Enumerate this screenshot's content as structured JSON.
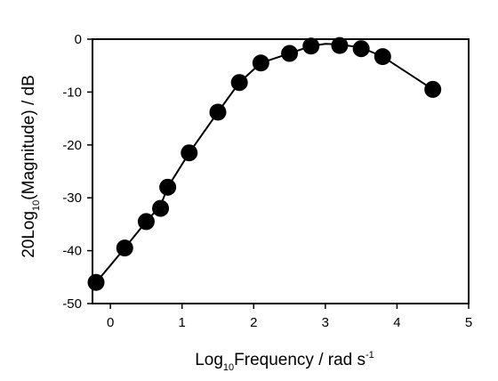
{
  "chart_data": {
    "type": "line",
    "title": "",
    "xlabel": {
      "prefix": "Log",
      "sub": "10",
      "main": "Frequency / rad s",
      "sup": "-1"
    },
    "ylabel": {
      "prefix": "20Log",
      "sub": "10",
      "main": "(Magnitude) / dB"
    },
    "xlim": [
      -0.25,
      5
    ],
    "ylim": [
      -50,
      0
    ],
    "xticks": [
      0,
      1,
      2,
      3,
      4,
      5
    ],
    "xtick_labels": [
      "0",
      "1",
      "2",
      "3",
      "4",
      "5"
    ],
    "yticks": [
      0,
      -10,
      -20,
      -30,
      -40,
      -50
    ],
    "ytick_labels": [
      "0",
      "-10",
      "-20",
      "-30",
      "-40",
      "-50"
    ],
    "grid": false,
    "series": [
      {
        "marker": "filled-circle",
        "color": "#000000",
        "x": [
          -0.2,
          0.2,
          0.5,
          0.7,
          0.8,
          1.1,
          1.5,
          1.8,
          2.1,
          2.5,
          2.8,
          3.2,
          3.5,
          3.8,
          4.5
        ],
        "y": [
          -46,
          -39.5,
          -34.5,
          -32,
          -28,
          -21.5,
          -13.8,
          -8.2,
          -4.5,
          -2.7,
          -1.3,
          -1.2,
          -1.8,
          -3.3,
          -9.5
        ]
      }
    ],
    "curve": {
      "x": [
        -0.25,
        0.0,
        0.2,
        0.5,
        0.7,
        0.8,
        1.1,
        1.5,
        1.8,
        2.1,
        2.5,
        2.8,
        3.0,
        3.2,
        3.5,
        3.8,
        4.5
      ],
      "y": [
        -46.8,
        -42.8,
        -39.5,
        -34.5,
        -31.5,
        -28,
        -21.5,
        -13.8,
        -8.2,
        -4.5,
        -2.7,
        -1.3,
        -0.9,
        -1.0,
        -1.6,
        -3.3,
        -9.5
      ]
    }
  }
}
